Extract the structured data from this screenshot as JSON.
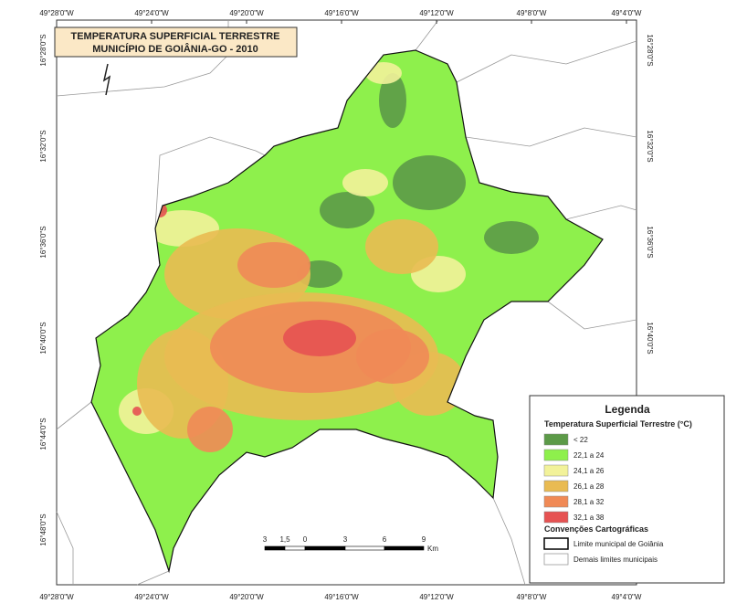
{
  "map": {
    "title": [
      "TEMPERATURA SUPERFICIAL TERRESTRE",
      "MUNICÍPIO DE GOIÂNIA-GO - 2010"
    ],
    "longitude_labels": [
      "49°28'0\"W",
      "49°24'0\"W",
      "49°20'0\"W",
      "49°16'0\"W",
      "49°12'0\"W",
      "49°8'0\"W",
      "49°4'0\"W"
    ],
    "latitude_labels": [
      "16°28'0\"S",
      "16°32'0\"S",
      "16°36'0\"S",
      "16°40'0\"S",
      "16°44'0\"S",
      "16°48'0\"S"
    ],
    "legend": {
      "title": "Legenda",
      "subtitle": "Temperatura Superficial Terrestre (°C)",
      "classes": [
        {
          "label": "< 22",
          "color": "#5c9a48"
        },
        {
          "label": "22,1 a 24",
          "color": "#8ef04c"
        },
        {
          "label": "24,1 a 26",
          "color": "#f2f29a"
        },
        {
          "label": "26,1 a 28",
          "color": "#e9bb52"
        },
        {
          "label": "28,1 a 32",
          "color": "#f08a56"
        },
        {
          "label": "32,1 a 38",
          "color": "#e65252"
        }
      ],
      "conventions_title": "Convenções Cartográficas",
      "conventions": [
        "Limite municipal de Goiânia",
        "Demais limites municipais"
      ]
    },
    "scale_bar": {
      "labels": [
        "3",
        "1,5",
        "0",
        "3",
        "6",
        "9"
      ],
      "unit": "Km"
    }
  }
}
